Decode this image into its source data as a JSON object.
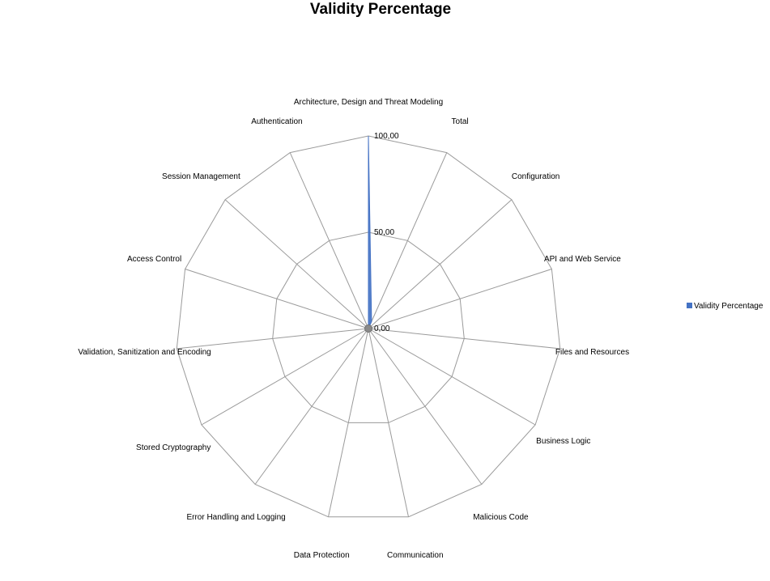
{
  "chart_data": {
    "type": "radar",
    "title": "Validity Percentage",
    "categories": [
      "Architecture, Design and Threat Modeling",
      "Total",
      "Configuration",
      "API and Web Service",
      "Files and Resources",
      "Business Logic",
      "Malicious Code",
      "Communication",
      "Data Protection",
      "Error Handling and Logging",
      "Stored Cryptography",
      "Validation, Sanitization and Encoding",
      "Access Control",
      "Session Management",
      "Authentication"
    ],
    "series": [
      {
        "name": "Validity Percentage",
        "color": "#4472C4",
        "values": [
          100,
          4,
          0,
          0,
          0,
          0,
          0,
          0,
          0,
          0,
          0,
          0,
          0,
          0,
          0
        ]
      }
    ],
    "rlim": [
      0,
      100
    ],
    "ticks": [
      {
        "value": 0,
        "label": "0,00"
      },
      {
        "value": 50,
        "label": "50,00"
      },
      {
        "value": 100,
        "label": "100,00"
      }
    ],
    "grid": true,
    "legend": "right",
    "grid_color": "#9a9a9a"
  }
}
